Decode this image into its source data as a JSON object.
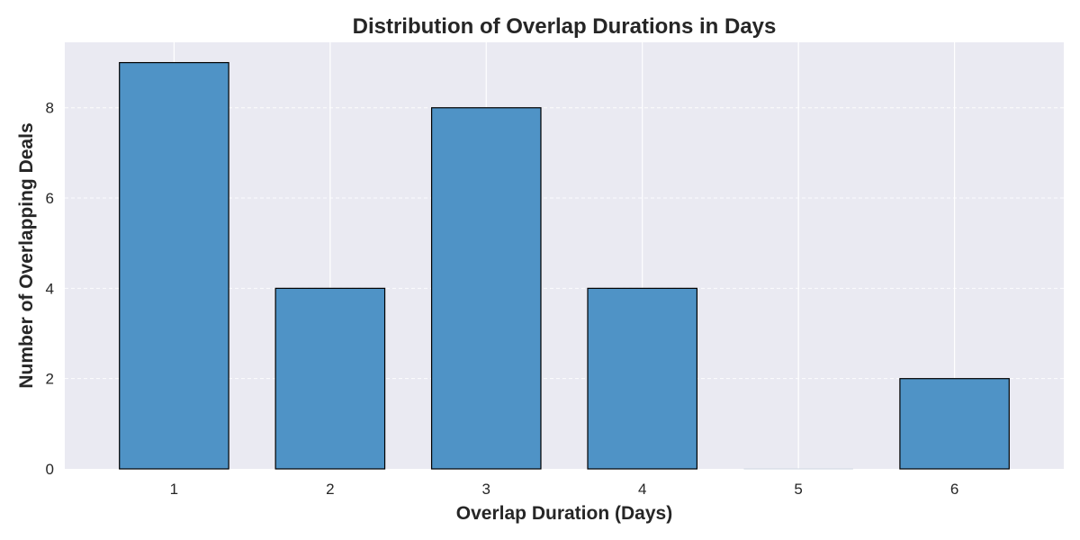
{
  "chart_data": {
    "type": "bar",
    "title": "Distribution of Overlap Durations in Days",
    "xlabel": "Overlap Duration (Days)",
    "ylabel": "Number of Overlapping Deals",
    "categories": [
      "1",
      "2",
      "3",
      "4",
      "5",
      "6"
    ],
    "values": [
      9,
      4,
      8,
      4,
      0,
      2
    ],
    "ylim": [
      0,
      9.45
    ],
    "yticks": [
      "0",
      "2",
      "4",
      "6",
      "8"
    ],
    "grid": true,
    "legend": "none",
    "colors": {
      "bar": "#4f93c6",
      "bar_edge": "#000000",
      "plot_background": "#eaeaf2",
      "grid": "#ffffff"
    }
  }
}
